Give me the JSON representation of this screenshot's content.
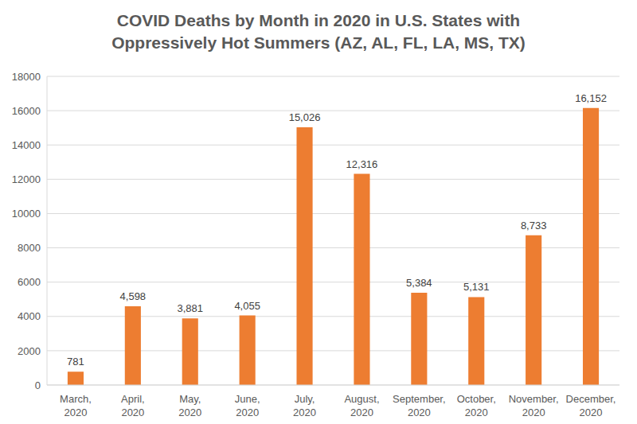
{
  "chart_data": {
    "type": "bar",
    "title": "COVID Deaths by Month in 2020 in U.S. States with Oppressively Hot Summers (AZ, AL, FL, LA, MS, TX)",
    "categories": [
      "March, 2020",
      "April, 2020",
      "May, 2020",
      "June, 2020",
      "July, 2020",
      "August, 2020",
      "September, 2020",
      "October, 2020",
      "November, 2020",
      "December, 2020"
    ],
    "values": [
      781,
      4598,
      3881,
      4055,
      15026,
      12316,
      5384,
      5131,
      8733,
      16152
    ],
    "value_labels": [
      "781",
      "4,598",
      "3,881",
      "4,055",
      "15,026",
      "12,316",
      "5,384",
      "5,131",
      "8,733",
      "16,152"
    ],
    "color": "#ed7d31",
    "ylim": [
      0,
      18000
    ],
    "yticks": [
      0,
      2000,
      4000,
      6000,
      8000,
      10000,
      12000,
      14000,
      16000,
      18000
    ],
    "grid": true,
    "data_labels": true
  }
}
